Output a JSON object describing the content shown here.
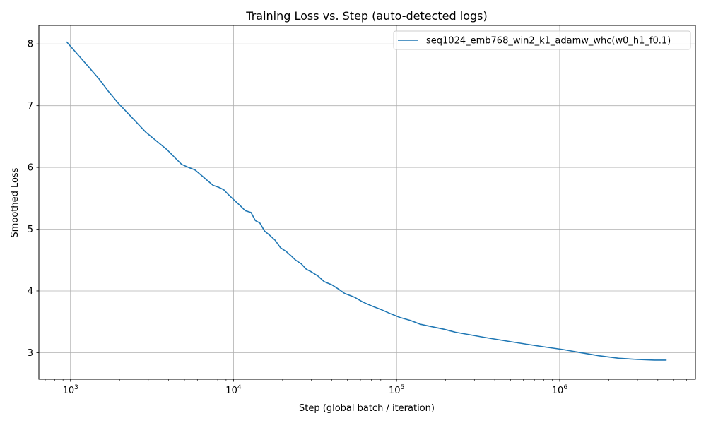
{
  "chart_data": {
    "type": "line",
    "title": "Training Loss vs. Step (auto-detected logs)",
    "xlabel": "Step (global batch / iteration)",
    "ylabel": "Smoothed Loss",
    "xscale": "log",
    "xlim": [
      640,
      6800000
    ],
    "ylim": [
      2.57,
      8.3
    ],
    "x_major_ticks": [
      {
        "value": 1000,
        "base": "10",
        "exp": "3"
      },
      {
        "value": 10000,
        "base": "10",
        "exp": "4"
      },
      {
        "value": 100000,
        "base": "10",
        "exp": "5"
      },
      {
        "value": 1000000,
        "base": "10",
        "exp": "6"
      }
    ],
    "y_ticks": [
      3,
      4,
      5,
      6,
      7,
      8
    ],
    "grid": true,
    "legend_position": "upper-right",
    "series": [
      {
        "name": "seq1024_emb768_win2_k1_adamw_whc(w0_h1_f0.1)",
        "color": "#1f77b4",
        "x": [
          950,
          1300,
          1500,
          1700,
          1950,
          2400,
          2900,
          3400,
          3900,
          4400,
          4800,
          5300,
          5800,
          6300,
          6900,
          7500,
          8100,
          8700,
          9300,
          10000,
          11000,
          11800,
          12800,
          13600,
          14500,
          15500,
          16700,
          18000,
          19400,
          21000,
          22500,
          24000,
          26000,
          28000,
          30000,
          33000,
          36000,
          40000,
          44000,
          48000,
          55000,
          62000,
          70000,
          80000,
          92000,
          105000,
          122000,
          140000,
          165000,
          195000,
          230000,
          280000,
          340000,
          420000,
          520000,
          650000,
          820000,
          1050000,
          1350000,
          1750000,
          2300000,
          3000000,
          3800000,
          4500000
        ],
        "y": [
          8.03,
          7.62,
          7.43,
          7.24,
          7.05,
          6.8,
          6.57,
          6.42,
          6.29,
          6.15,
          6.05,
          6.0,
          5.96,
          5.88,
          5.79,
          5.71,
          5.68,
          5.64,
          5.56,
          5.48,
          5.38,
          5.3,
          5.27,
          5.14,
          5.1,
          4.97,
          4.9,
          4.82,
          4.7,
          4.64,
          4.57,
          4.5,
          4.44,
          4.35,
          4.31,
          4.24,
          4.15,
          4.1,
          4.03,
          3.96,
          3.9,
          3.82,
          3.76,
          3.7,
          3.63,
          3.57,
          3.52,
          3.46,
          3.42,
          3.38,
          3.33,
          3.29,
          3.25,
          3.21,
          3.17,
          3.13,
          3.09,
          3.05,
          3.0,
          2.95,
          2.91,
          2.89,
          2.88,
          2.88
        ]
      }
    ]
  }
}
